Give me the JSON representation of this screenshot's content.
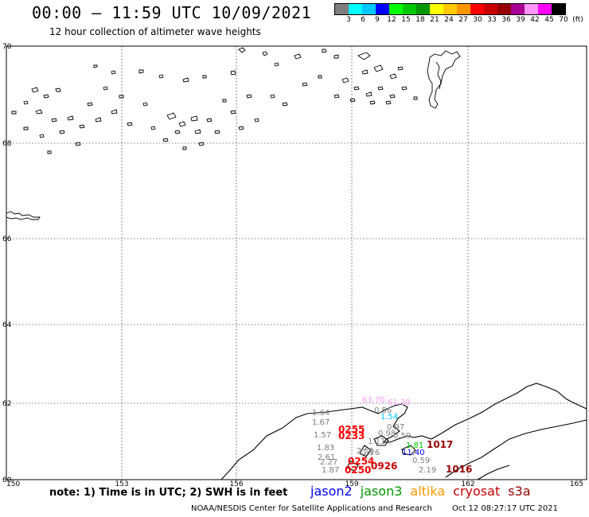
{
  "header": {
    "title": "00:00 – 11:59 UTC 10/09/2021",
    "subtitle": "12 hour collection of altimeter wave heights"
  },
  "legend": {
    "unit": "(ft)",
    "colors": [
      "#7f7f7f",
      "#00ffff",
      "#00c8ff",
      "#0000ff",
      "#00ff00",
      "#00c800",
      "#009600",
      "#ffff00",
      "#ffc800",
      "#ff9600",
      "#ff0000",
      "#c80000",
      "#960000",
      "#aa0096",
      "#ff96ff",
      "#ff00ff",
      "#000000"
    ],
    "labels": [
      "3",
      "6",
      "9",
      "12",
      "15",
      "18",
      "21",
      "24",
      "27",
      "30",
      "33",
      "36",
      "39",
      "42",
      "45",
      "70"
    ]
  },
  "axes": {
    "lon_ticks": [
      "150",
      "153",
      "156",
      "159",
      "162",
      "165"
    ],
    "lat_ticks": [
      "70",
      "68",
      "66",
      "64",
      "62",
      "60"
    ]
  },
  "wave_labels": [
    {
      "text": "63.70",
      "color": "#ff96ff"
    },
    {
      "text": "61.30",
      "color": "#ff96ff"
    },
    {
      "text": "0.56",
      "color": "#7f7f7f"
    },
    {
      "text": "1.64",
      "color": "#7f7f7f"
    },
    {
      "text": "1.54",
      "color": "#00c8ff"
    },
    {
      "text": "1.67",
      "color": "#7f7f7f"
    },
    {
      "text": "1.57",
      "color": "#7f7f7f"
    },
    {
      "text": "0.97",
      "color": "#7f7f7f"
    },
    {
      "text": "0.98",
      "color": "#7f7f7f"
    },
    {
      "text": "1.11",
      "color": "#7f7f7f"
    },
    {
      "text": "0.59",
      "color": "#7f7f7f"
    },
    {
      "text": "1.26",
      "color": "#7f7f7f"
    },
    {
      "text": "1.83",
      "color": "#7f7f7f"
    },
    {
      "text": "2.51",
      "color": "#7f7f7f"
    },
    {
      "text": "2.61",
      "color": "#7f7f7f"
    },
    {
      "text": "2.27",
      "color": "#7f7f7f"
    },
    {
      "text": "1.87",
      "color": "#7f7f7f"
    },
    {
      "text": "1.81",
      "color": "#00c800"
    },
    {
      "text": "11.40",
      "color": "#0000ff"
    },
    {
      "text": "0.59",
      "color": "#7f7f7f"
    },
    {
      "text": "2.19",
      "color": "#7f7f7f"
    },
    {
      "text": "0255",
      "color": "#ff0000"
    },
    {
      "text": "0233",
      "color": "#ff0000"
    },
    {
      "text": "0254",
      "color": "#ff0000"
    },
    {
      "text": "0250",
      "color": "#ff0000"
    },
    {
      "text": "0926",
      "color": "#c80000"
    },
    {
      "text": "1017",
      "color": "#960000"
    },
    {
      "text": "1016",
      "color": "#960000"
    }
  ],
  "footer": {
    "note": "note: 1) Time is in UTC; 2) SWH is in feet",
    "satellites": [
      {
        "name": "jason2",
        "color": "#0000ff"
      },
      {
        "name": "jason3",
        "color": "#009600"
      },
      {
        "name": "altika",
        "color": "#ff9600"
      },
      {
        "name": "cryosat",
        "color": "#c80000"
      },
      {
        "name": "s3a",
        "color": "#960000"
      }
    ],
    "credit": "NOAA/NESDIS Center for Satellite Applications and Research",
    "timestamp": "Oct 12 08:27:17 UTC 2021"
  }
}
